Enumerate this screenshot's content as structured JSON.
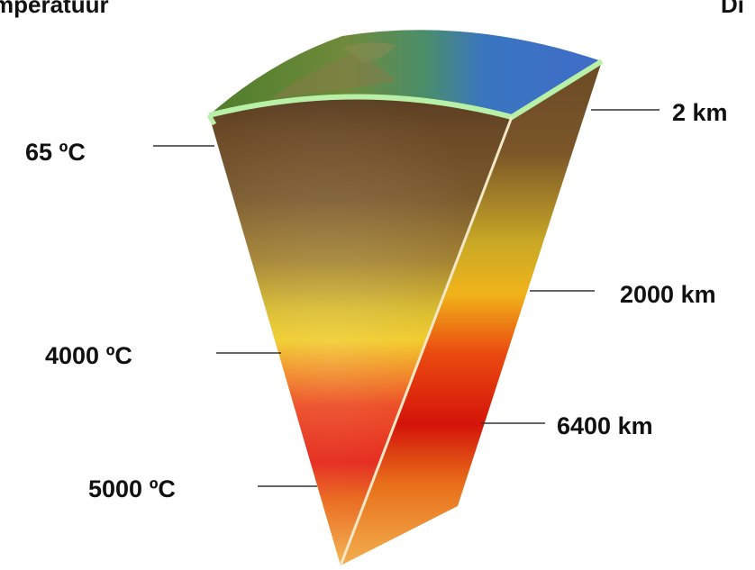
{
  "headings": {
    "left": "mperatuur",
    "right": "Di"
  },
  "temperatures": [
    {
      "id": "surface",
      "text": "65 ºC"
    },
    {
      "id": "mantle",
      "text": "4000 ºC"
    },
    {
      "id": "core",
      "text": "5000 ºC"
    }
  ],
  "depths": [
    {
      "id": "crust",
      "text": "2 km"
    },
    {
      "id": "mantle",
      "text": "2000 km"
    },
    {
      "id": "core",
      "text": "6400 km"
    }
  ],
  "colors": {
    "ocean": "#3c6fc8",
    "land": "#5f8a35",
    "crust_rim": "#9ee08c",
    "upper_mantle": "#6b4a26",
    "lower_mantle": "#e8c818",
    "outer_core": "#e81e0a",
    "inner_core": "#f29a3a"
  }
}
